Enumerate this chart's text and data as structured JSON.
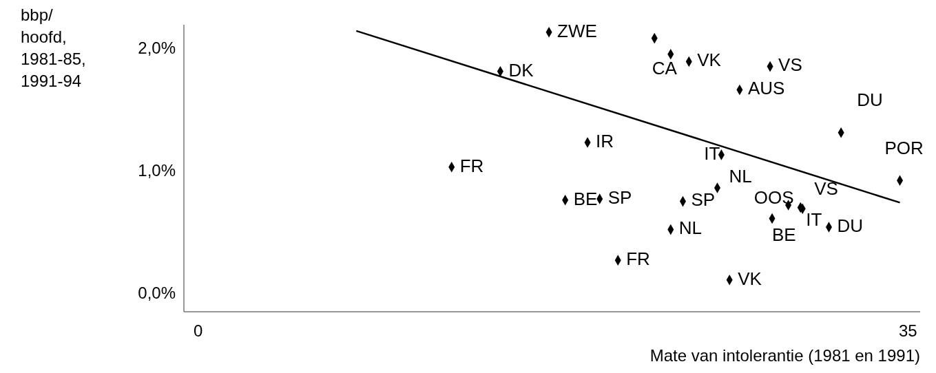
{
  "chart_data": {
    "type": "scatter",
    "xlabel": "Mate van intolerantie (1981 en 1991)",
    "ylabel": "bbp/ hoofd, 1981-85, 1991-94",
    "xlim": [
      -0.7,
      35.6
    ],
    "xticks": [
      0,
      35
    ],
    "ylim": [
      -0.14,
      2.2
    ],
    "yticks": [
      {
        "value": 0,
        "label": "0,0%"
      },
      {
        "value": 1,
        "label": "1,0%"
      },
      {
        "value": 2,
        "label": "2,0%"
      }
    ],
    "grid": false,
    "series": [
      {
        "color": "#000000",
        "marker": "diamond",
        "x": [
          17.3,
          22.5,
          23.3,
          24.2,
          28.2,
          14.9,
          26.7,
          31.7,
          19.2,
          25.8,
          12.5,
          34.6,
          25.6,
          18.1,
          19.8,
          23.9,
          29.1,
          29.7,
          29.8,
          28.3,
          31.1,
          23.3,
          20.7,
          26.2
        ],
        "values": [
          2.14,
          2.09,
          1.96,
          1.9,
          1.86,
          1.82,
          1.67,
          1.32,
          1.24,
          1.14,
          1.04,
          0.93,
          0.87,
          0.77,
          0.78,
          0.76,
          0.73,
          0.71,
          0.7,
          0.62,
          0.55,
          0.53,
          0.28,
          0.12
        ]
      },
      {
        "type": "line",
        "color": "#000000",
        "marker": "none",
        "line_style": "solid",
        "x": [
          7.8,
          34.6
        ],
        "values": [
          2.15,
          0.75
        ]
      }
    ],
    "annotations": [
      {
        "text": "ZWE",
        "x": 17.3,
        "y": 2.14
      },
      {
        "text": "CA",
        "x": 23.3,
        "y": 1.96
      },
      {
        "text": "VK",
        "x": 24.2,
        "y": 1.9
      },
      {
        "text": "VS",
        "x": 28.2,
        "y": 1.86
      },
      {
        "text": "DK",
        "x": 14.9,
        "y": 1.82
      },
      {
        "text": "AUS",
        "x": 26.7,
        "y": 1.67
      },
      {
        "text": "DU",
        "x": 31.7,
        "y": 1.32
      },
      {
        "text": "IR",
        "x": 19.2,
        "y": 1.24
      },
      {
        "text": "IT",
        "x": 25.8,
        "y": 1.14
      },
      {
        "text": "FR",
        "x": 12.5,
        "y": 1.04
      },
      {
        "text": "POR",
        "x": 34.6,
        "y": 0.93
      },
      {
        "text": "NL",
        "x": 25.6,
        "y": 0.87
      },
      {
        "text": "BE",
        "x": 18.1,
        "y": 0.77
      },
      {
        "text": "SP",
        "x": 19.8,
        "y": 0.78
      },
      {
        "text": "SP",
        "x": 23.9,
        "y": 0.76
      },
      {
        "text": "OOS",
        "x": 29.1,
        "y": 0.73
      },
      {
        "text": "VS",
        "x": 29.7,
        "y": 0.71
      },
      {
        "text": "IT",
        "x": 29.8,
        "y": 0.7
      },
      {
        "text": "BE",
        "x": 28.3,
        "y": 0.62
      },
      {
        "text": "DU",
        "x": 31.1,
        "y": 0.55
      },
      {
        "text": "NL",
        "x": 23.3,
        "y": 0.53
      },
      {
        "text": "FR",
        "x": 20.7,
        "y": 0.28
      },
      {
        "text": "VK",
        "x": 26.2,
        "y": 0.12
      }
    ]
  }
}
